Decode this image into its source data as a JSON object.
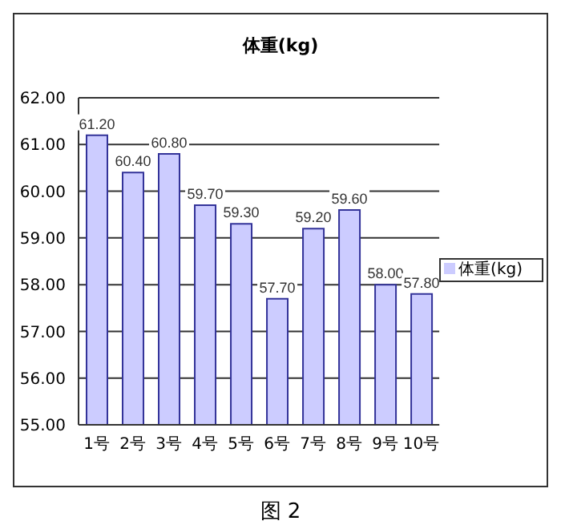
{
  "chart_data": {
    "type": "bar",
    "title": "体重(kg)",
    "categories": [
      "1号",
      "2号",
      "3号",
      "4号",
      "5号",
      "6号",
      "7号",
      "8号",
      "9号",
      "10号"
    ],
    "series": [
      {
        "name": "体重(kg)",
        "color": "#ccccff",
        "values": [
          61.2,
          60.4,
          60.8,
          59.7,
          59.3,
          57.7,
          59.2,
          59.6,
          58.0,
          57.8
        ],
        "value_labels": [
          "61.20",
          "60.40",
          "60.80",
          "59.70",
          "59.30",
          "57.70",
          "59.20",
          "59.60",
          "58.00",
          "57.80"
        ]
      }
    ],
    "ylim": [
      55,
      62
    ],
    "yticks": [
      {
        "value": 55,
        "label": "55.00"
      },
      {
        "value": 56,
        "label": "56.00"
      },
      {
        "value": 57,
        "label": "57.00"
      },
      {
        "value": 58,
        "label": "58.00"
      },
      {
        "value": 59,
        "label": "59.00"
      },
      {
        "value": 60,
        "label": "60.00"
      },
      {
        "value": 61,
        "label": "61.00"
      },
      {
        "value": 62,
        "label": "62.00"
      }
    ],
    "grid": "y",
    "legend": "right",
    "annotations": [
      "图 2"
    ]
  }
}
